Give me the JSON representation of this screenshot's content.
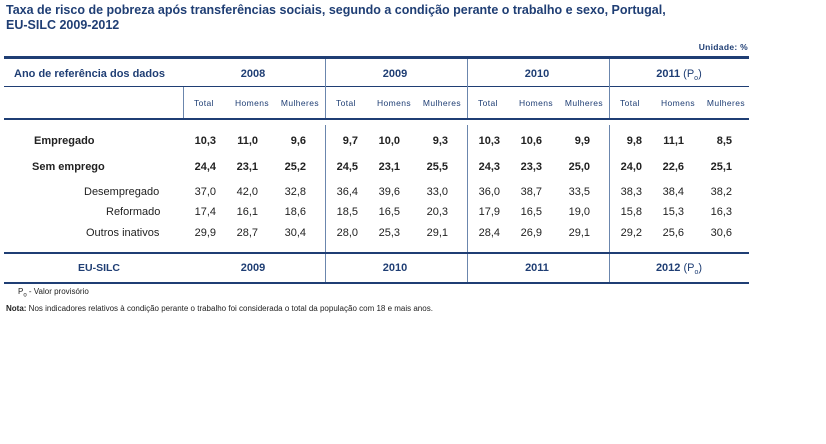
{
  "title_line1": "Taxa de risco de pobreza após transferências sociais, segundo a condição perante o trabalho e sexo, Portugal,",
  "title_line2": "EU-SILC 2009-2012",
  "unit": "Unidade: %",
  "header": {
    "row_label": "Ano de referência dos dados",
    "years": [
      "2008",
      "2009",
      "2010",
      "2011"
    ],
    "provisional_mark": "(P",
    "provisional_sub": "o",
    "provisional_close": ")",
    "subheaders": [
      "Total",
      "Homens",
      "Mulheres"
    ]
  },
  "rows": [
    {
      "label": "Empregado",
      "bold": true,
      "values": [
        "10,3",
        "11,0",
        "9,6",
        "9,7",
        "10,0",
        "9,3",
        "10,3",
        "10,6",
        "9,9",
        "9,8",
        "11,1",
        "8,5"
      ]
    },
    {
      "label": "Sem emprego",
      "bold": true,
      "values": [
        "24,4",
        "23,1",
        "25,2",
        "24,5",
        "23,1",
        "25,5",
        "24,3",
        "23,3",
        "25,0",
        "24,0",
        "22,6",
        "25,1"
      ]
    },
    {
      "label": "Desempregado",
      "bold": false,
      "values": [
        "37,0",
        "42,0",
        "32,8",
        "36,4",
        "39,6",
        "33,0",
        "36,0",
        "38,7",
        "33,5",
        "38,3",
        "38,4",
        "38,2"
      ]
    },
    {
      "label": "Reformado",
      "bold": false,
      "values": [
        "17,4",
        "16,1",
        "18,6",
        "18,5",
        "16,5",
        "20,3",
        "17,9",
        "16,5",
        "19,0",
        "15,8",
        "15,3",
        "16,3"
      ]
    },
    {
      "label": "Outros inativos",
      "bold": false,
      "values": [
        "29,9",
        "28,7",
        "30,4",
        "28,0",
        "25,3",
        "29,1",
        "28,4",
        "26,9",
        "29,1",
        "29,2",
        "25,6",
        "30,6"
      ]
    }
  ],
  "footer": {
    "label": "EU-SILC",
    "years": [
      "2009",
      "2010",
      "2011",
      "2012"
    ]
  },
  "notes": {
    "provisional": "P",
    "provisional_sub": "o",
    "provisional_text": " - Valor provisório",
    "note_label": "Nota:",
    "note_text": " Nos indicadores relativos à condição perante o trabalho foi considerada o total da população com 18 e mais anos."
  }
}
